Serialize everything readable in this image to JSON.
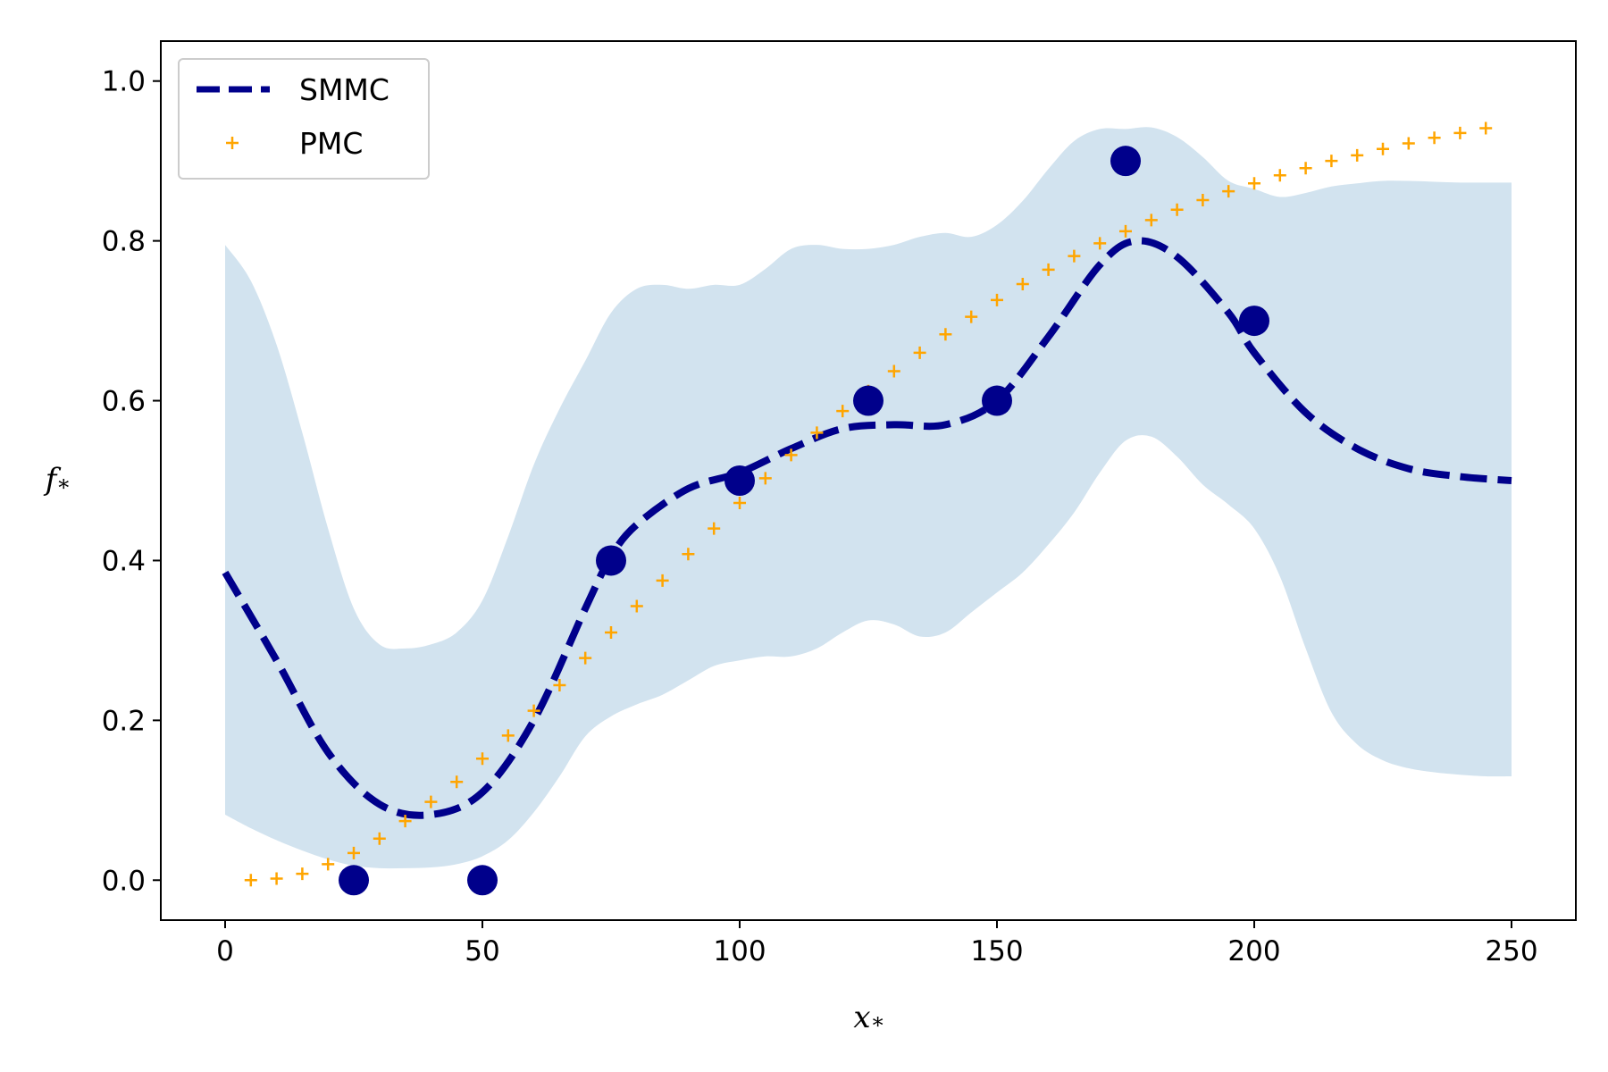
{
  "chart_data": {
    "type": "line",
    "xlabel": "x",
    "xlabel_sub": "*",
    "ylabel": "f",
    "ylabel_sub": "*",
    "xlim": [
      -12.5,
      262.5
    ],
    "ylim": [
      -0.05,
      1.05
    ],
    "x_ticks": [
      0,
      50,
      100,
      150,
      200,
      250
    ],
    "y_ticks": [
      0.0,
      0.2,
      0.4,
      0.6,
      0.8,
      1.0
    ],
    "x_tick_labels": [
      "0",
      "50",
      "100",
      "150",
      "200",
      "250"
    ],
    "y_tick_labels": [
      "0.0",
      "0.2",
      "0.4",
      "0.6",
      "0.8",
      "1.0"
    ],
    "grid": false,
    "legend_position": "top-left",
    "colors": {
      "smmc": "#00008b",
      "pmc": "#ffa500",
      "band": "#d2e3ef",
      "observations": "#00008b"
    },
    "series": [
      {
        "name": "SMMC",
        "style": "dashed",
        "x": [
          0,
          10,
          20,
          30,
          40,
          50,
          60,
          70,
          75,
          80,
          90,
          100,
          110,
          120,
          130,
          140,
          150,
          160,
          170,
          177,
          185,
          195,
          200,
          210,
          220,
          230,
          240,
          250
        ],
        "y": [
          0.385,
          0.275,
          0.16,
          0.095,
          0.082,
          0.11,
          0.2,
          0.34,
          0.405,
          0.445,
          0.49,
          0.51,
          0.54,
          0.565,
          0.57,
          0.57,
          0.6,
          0.68,
          0.77,
          0.8,
          0.78,
          0.71,
          0.66,
          0.585,
          0.54,
          0.515,
          0.505,
          0.5
        ]
      },
      {
        "name": "PMC",
        "style": "plus-markers",
        "x": [
          5,
          10,
          15,
          20,
          25,
          30,
          35,
          40,
          45,
          50,
          55,
          60,
          65,
          70,
          75,
          80,
          85,
          90,
          95,
          100,
          105,
          110,
          115,
          120,
          125,
          130,
          135,
          140,
          145,
          150,
          155,
          160,
          165,
          170,
          175,
          180,
          185,
          190,
          195,
          200,
          205,
          210,
          215,
          220,
          225,
          230,
          235,
          240,
          245
        ],
        "y": [
          0.0,
          0.002,
          0.008,
          0.02,
          0.034,
          0.052,
          0.074,
          0.098,
          0.123,
          0.152,
          0.181,
          0.212,
          0.244,
          0.278,
          0.31,
          0.343,
          0.375,
          0.408,
          0.44,
          0.472,
          0.503,
          0.532,
          0.56,
          0.587,
          0.612,
          0.637,
          0.66,
          0.683,
          0.705,
          0.726,
          0.746,
          0.764,
          0.781,
          0.797,
          0.812,
          0.826,
          0.839,
          0.851,
          0.862,
          0.872,
          0.882,
          0.891,
          0.9,
          0.907,
          0.915,
          0.922,
          0.929,
          0.935,
          0.941
        ]
      },
      {
        "name": "",
        "style": "filled-circles",
        "x": [
          25,
          50,
          75,
          100,
          125,
          150,
          175,
          200
        ],
        "y": [
          0.0,
          0.0,
          0.4,
          0.5,
          0.6,
          0.6,
          0.9,
          0.7
        ]
      }
    ],
    "band": {
      "x": [
        0,
        5,
        10,
        15,
        20,
        25,
        30,
        35,
        40,
        45,
        50,
        55,
        60,
        65,
        70,
        75,
        80,
        85,
        90,
        95,
        100,
        105,
        110,
        115,
        120,
        125,
        130,
        135,
        140,
        145,
        150,
        155,
        160,
        165,
        170,
        175,
        180,
        185,
        190,
        195,
        200,
        205,
        210,
        215,
        220,
        225,
        230,
        235,
        240,
        245,
        250
      ],
      "upper": [
        0.795,
        0.75,
        0.67,
        0.56,
        0.44,
        0.34,
        0.295,
        0.29,
        0.295,
        0.31,
        0.35,
        0.43,
        0.52,
        0.59,
        0.65,
        0.71,
        0.74,
        0.745,
        0.74,
        0.745,
        0.745,
        0.765,
        0.79,
        0.795,
        0.79,
        0.79,
        0.795,
        0.805,
        0.81,
        0.805,
        0.82,
        0.85,
        0.89,
        0.925,
        0.94,
        0.94,
        0.942,
        0.93,
        0.905,
        0.875,
        0.865,
        0.855,
        0.86,
        0.868,
        0.872,
        0.875,
        0.875,
        0.874,
        0.873,
        0.873,
        0.873
      ],
      "lower": [
        0.082,
        0.065,
        0.05,
        0.037,
        0.026,
        0.018,
        0.015,
        0.015,
        0.016,
        0.02,
        0.03,
        0.05,
        0.085,
        0.13,
        0.18,
        0.205,
        0.22,
        0.232,
        0.25,
        0.268,
        0.275,
        0.28,
        0.28,
        0.29,
        0.31,
        0.325,
        0.32,
        0.305,
        0.31,
        0.335,
        0.36,
        0.385,
        0.42,
        0.46,
        0.51,
        0.55,
        0.555,
        0.53,
        0.495,
        0.47,
        0.44,
        0.38,
        0.29,
        0.21,
        0.17,
        0.15,
        0.14,
        0.135,
        0.132,
        0.13,
        0.13
      ]
    }
  }
}
